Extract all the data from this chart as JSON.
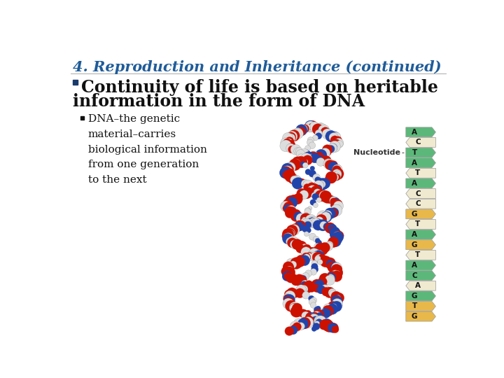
{
  "title": "4. Reproduction and Inheritance (continued)",
  "title_color": "#1F5C9A",
  "title_fontsize": 15,
  "bullet1_line1": "Continuity of life is based on heritable",
  "bullet1_line2": "information in the form of DNA",
  "bullet1_color": "#111111",
  "bullet1_fontsize": 17,
  "bullet2_text": "DNA–the genetic\nmaterial–carries\nbiological information\nfrom one generation\nto the next",
  "bullet2_color": "#111111",
  "bullet2_fontsize": 11,
  "nucleotide_label": "Nucleotide",
  "nucleotide_label_color": "#333333",
  "nucleotide_fontsize": 8,
  "nucleotide_sequence": [
    "A",
    "C",
    "T",
    "A",
    "T",
    "A",
    "C",
    "C",
    "G",
    "T",
    "A",
    "G",
    "T",
    "A",
    "C",
    "A",
    "G",
    "T",
    "G"
  ],
  "green_color": "#5cb87a",
  "yellow_color": "#e8b84b",
  "cream_color": "#f0ead0",
  "yellow_indices": [
    8,
    11,
    17,
    18
  ],
  "cream_indices": [
    1,
    4,
    6,
    7,
    9,
    12,
    15
  ],
  "background_color": "#ffffff"
}
